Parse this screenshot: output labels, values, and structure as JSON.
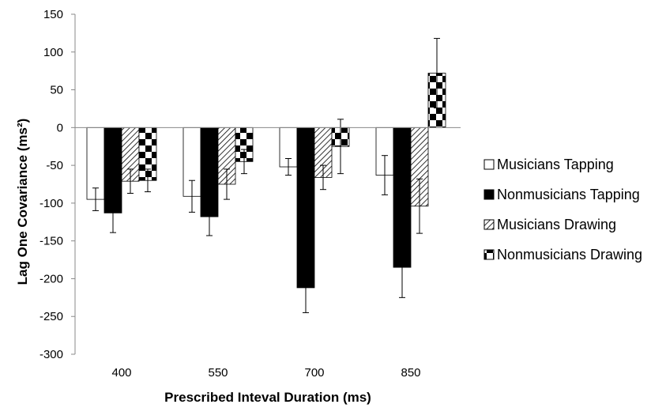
{
  "chart_data": {
    "type": "bar",
    "xlabel": "Prescribed Inteval Duration (ms)",
    "ylabel": "Lag One Covariance (ms²)",
    "categories": [
      "400",
      "550",
      "700",
      "850"
    ],
    "ylim": [
      -300,
      150
    ],
    "yticks": [
      150,
      100,
      50,
      0,
      -50,
      -100,
      -150,
      -200,
      -250,
      -300
    ],
    "grid": false,
    "legend_position": "right",
    "series": [
      {
        "name": "Musicians Tapping",
        "pattern": "white",
        "values": [
          -95,
          -91,
          -52,
          -63
        ],
        "errors": [
          15,
          21,
          11,
          26
        ]
      },
      {
        "name": "Nonmusicians Tapping",
        "pattern": "black",
        "values": [
          -113,
          -118,
          -212,
          -185
        ],
        "errors": [
          26,
          25,
          33,
          40
        ]
      },
      {
        "name": "Musicians Drawing",
        "pattern": "diagonal",
        "values": [
          -71,
          -75,
          -66,
          -104
        ],
        "errors": [
          16,
          20,
          16,
          36
        ]
      },
      {
        "name": "Nonmusicians Drawing",
        "pattern": "checker",
        "values": [
          -70,
          -45,
          -25,
          72
        ],
        "errors": [
          15,
          16,
          36,
          46
        ]
      }
    ],
    "colors": {
      "bar_stroke": "#000000",
      "white": "#ffffff",
      "black": "#000000",
      "axis": "#888888"
    }
  }
}
